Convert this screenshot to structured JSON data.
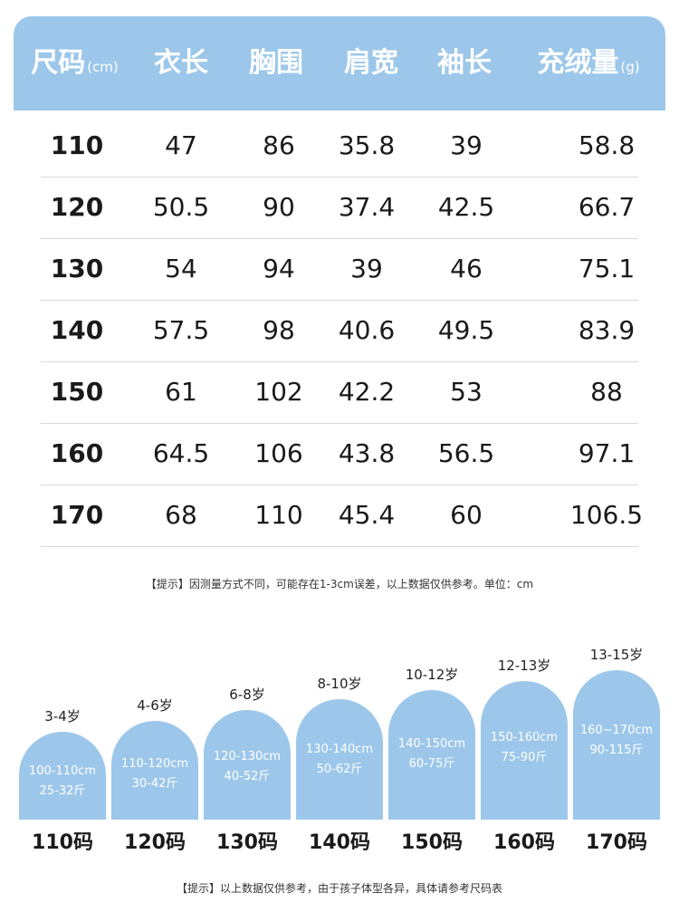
{
  "table": {
    "headers": [
      {
        "label": "尺码",
        "unit": "(cm)"
      },
      {
        "label": "衣长",
        "unit": ""
      },
      {
        "label": "胸围",
        "unit": ""
      },
      {
        "label": "肩宽",
        "unit": ""
      },
      {
        "label": "袖长",
        "unit": ""
      },
      {
        "label": "充绒量",
        "unit": "(g)"
      }
    ],
    "rows": [
      [
        "110",
        "47",
        "86",
        "35.8",
        "39",
        "58.8"
      ],
      [
        "120",
        "50.5",
        "90",
        "37.4",
        "42.5",
        "66.7"
      ],
      [
        "130",
        "54",
        "94",
        "39",
        "46",
        "75.1"
      ],
      [
        "140",
        "57.5",
        "98",
        "40.6",
        "49.5",
        "83.9"
      ],
      [
        "150",
        "61",
        "102",
        "42.2",
        "53",
        "88"
      ],
      [
        "160",
        "64.5",
        "106",
        "43.8",
        "56.5",
        "97.1"
      ],
      [
        "170",
        "68",
        "110",
        "45.4",
        "60",
        "106.5"
      ]
    ]
  },
  "note1": "【提示】因测量方式不同，可能存在1-3cm误差，以上数据仅供参考。单位：cm",
  "sizes": [
    {
      "age": "3-4岁",
      "height": "100-110cm",
      "weight": "25-32斤",
      "label": "110码"
    },
    {
      "age": "4-6岁",
      "height": "110-120cm",
      "weight": "30-42斤",
      "label": "120码"
    },
    {
      "age": "6-8岁",
      "height": "120-130cm",
      "weight": "40-52斤",
      "label": "130码"
    },
    {
      "age": "8-10岁",
      "height": "130-140cm",
      "weight": "50-62斤",
      "label": "140码"
    },
    {
      "age": "10-12岁",
      "height": "140-150cm",
      "weight": "60-75斤",
      "label": "150码"
    },
    {
      "age": "12-13岁",
      "height": "150-160cm",
      "weight": "75-90斤",
      "label": "160码"
    },
    {
      "age": "13-15岁",
      "height": "160~170cm",
      "weight": "90-115斤",
      "label": "170码"
    }
  ],
  "note2": "【提示】以上数据仅供参考，由于孩子体型各异，具体请参考尺码表",
  "colors": {
    "accent": "#9cc7ea",
    "text": "#1a1a1a"
  }
}
